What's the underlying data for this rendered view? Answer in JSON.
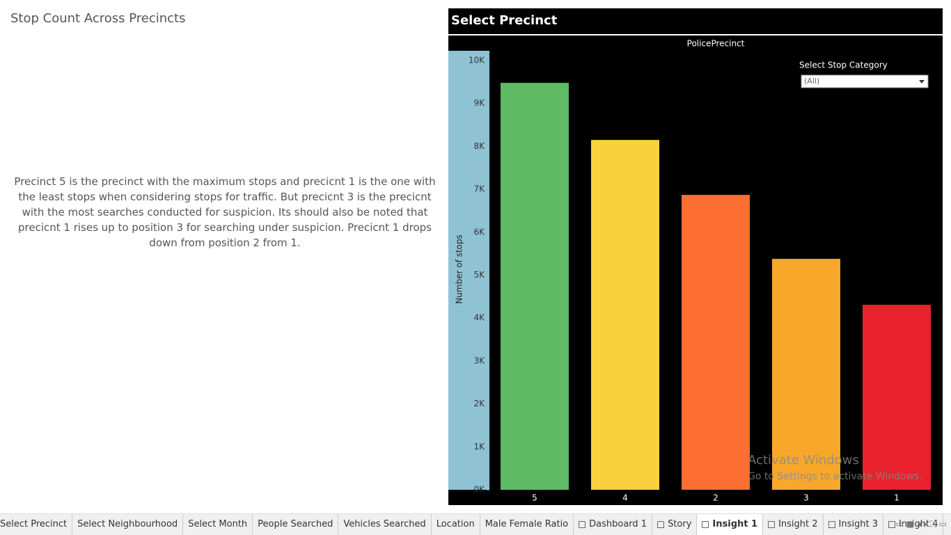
{
  "header": {
    "title": "Stop Count Across Precincts"
  },
  "description": "Precinct 5 is the precinct with the maximum stops and precicnt 1 is the one with the least stops when considering stops for traffic. But precicnt 3 is the precicnt with the most searches conducted for suspicion. Its should also be noted that precicnt 1 rises up to position 3 for searching under suspicion. Precicnt 1 drops down from position 2 from 1.",
  "chart_data": {
    "type": "bar",
    "title": "Select Precinct",
    "x_label": "PolicePrecinct",
    "y_label": "Number of stops",
    "categories": [
      "5",
      "4",
      "2",
      "3",
      "1"
    ],
    "values": [
      9480,
      8150,
      6870,
      5380,
      4310
    ],
    "colors": [
      "#5fba64",
      "#f9d13d",
      "#fd6e32",
      "#f8a72b",
      "#e8212c"
    ],
    "ylim": [
      0,
      10000
    ],
    "yticks": [
      {
        "value": 0,
        "label": "0K"
      },
      {
        "value": 1000,
        "label": "1K"
      },
      {
        "value": 2000,
        "label": "2K"
      },
      {
        "value": 3000,
        "label": "3K"
      },
      {
        "value": 4000,
        "label": "4K"
      },
      {
        "value": 5000,
        "label": "5K"
      },
      {
        "value": 6000,
        "label": "6K"
      },
      {
        "value": 7000,
        "label": "7K"
      },
      {
        "value": 8000,
        "label": "8K"
      },
      {
        "value": 9000,
        "label": "9K"
      },
      {
        "value": 10000,
        "label": "10K"
      }
    ]
  },
  "filter": {
    "label": "Select Stop Category",
    "value": "(All)"
  },
  "watermark": {
    "title": "Activate Windows",
    "subtitle": "Go to Settings to activate Windows."
  },
  "tabs": [
    {
      "label": "Select Precinct",
      "icon": "none"
    },
    {
      "label": "Select Neighbourhood",
      "icon": "none"
    },
    {
      "label": "Select Month",
      "icon": "none"
    },
    {
      "label": "People Searched",
      "icon": "none"
    },
    {
      "label": "Vehicles Searched",
      "icon": "none"
    },
    {
      "label": "Location",
      "icon": "none"
    },
    {
      "label": "Male Female Ratio",
      "icon": "none"
    },
    {
      "label": "Dashboard 1",
      "icon": "dashboard"
    },
    {
      "label": "Story",
      "icon": "story"
    },
    {
      "label": "Insight 1",
      "icon": "dashboard",
      "active": true
    },
    {
      "label": "Insight 2",
      "icon": "dashboard"
    },
    {
      "label": "Insight 3",
      "icon": "dashboard"
    },
    {
      "label": "Insight 4",
      "icon": "dashboard"
    }
  ]
}
